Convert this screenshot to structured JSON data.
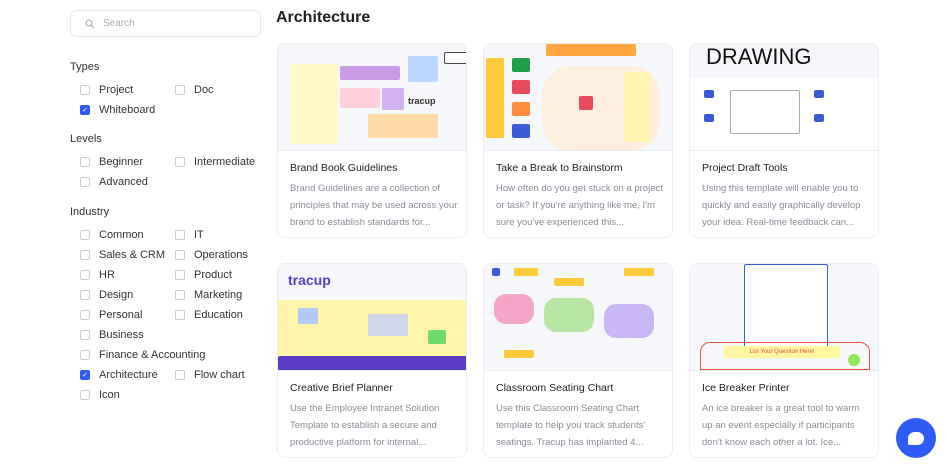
{
  "search": {
    "placeholder": "Search",
    "icon": "search-icon"
  },
  "filters": {
    "types": {
      "title": "Types",
      "items": [
        {
          "label": "Project",
          "checked": false
        },
        {
          "label": "Doc",
          "checked": false
        },
        {
          "label": "Whiteboard",
          "checked": true
        }
      ]
    },
    "levels": {
      "title": "Levels",
      "items": [
        {
          "label": "Beginner",
          "checked": false
        },
        {
          "label": "Intermediate",
          "checked": false
        },
        {
          "label": "Advanced",
          "checked": false
        }
      ]
    },
    "industry": {
      "title": "Industry",
      "items": [
        {
          "label": "Common",
          "checked": false
        },
        {
          "label": "IT",
          "checked": false
        },
        {
          "label": "Sales & CRM",
          "checked": false
        },
        {
          "label": "Operations",
          "checked": false
        },
        {
          "label": "HR",
          "checked": false
        },
        {
          "label": "Product",
          "checked": false
        },
        {
          "label": "Design",
          "checked": false
        },
        {
          "label": "Marketing",
          "checked": false
        },
        {
          "label": "Personal",
          "checked": false
        },
        {
          "label": "Education",
          "checked": false
        },
        {
          "label": "Business",
          "checked": false
        },
        {
          "label": "Finance & Accounting",
          "checked": false
        },
        {
          "label": "Architecture",
          "checked": true
        },
        {
          "label": "Flow chart",
          "checked": false
        },
        {
          "label": "Icon",
          "checked": false
        }
      ]
    }
  },
  "main": {
    "title": "Architecture",
    "cards": [
      {
        "title": "Brand Book Guidelines",
        "desc": "Brand Guidelines are a collection of principles that may be used across your brand to establish standards for...",
        "thumb_text": "tracup"
      },
      {
        "title": "Take a Break to Brainstorm",
        "desc": "How often do you get stuck on a project or task? If you're anything like me, I'm sure you've experienced this...",
        "thumb_text": ""
      },
      {
        "title": "Project Draft Tools",
        "desc": "Using this template will enable you to quickly and easily graphically develop your idea. Real-time feedback can...",
        "thumb_text": "DRAWING"
      },
      {
        "title": "Creative Brief Planner",
        "desc": "Use the Employee Intranet Solution Template to establish a secure and productive platform for internal...",
        "thumb_text": "tracup"
      },
      {
        "title": "Classroom Seating Chart",
        "desc": "Use this Classroom Seating Chart template to help you track students' seatings. Tracup has implanted 4...",
        "thumb_text": ""
      },
      {
        "title": "Ice Breaker Printer",
        "desc": "An ice breaker is a great tool to warm up an event especially if participants don't know each other a lot. Ice...",
        "thumb_text": "List Your Question Here!"
      }
    ]
  },
  "colors": {
    "accent": "#2f5cf6"
  }
}
